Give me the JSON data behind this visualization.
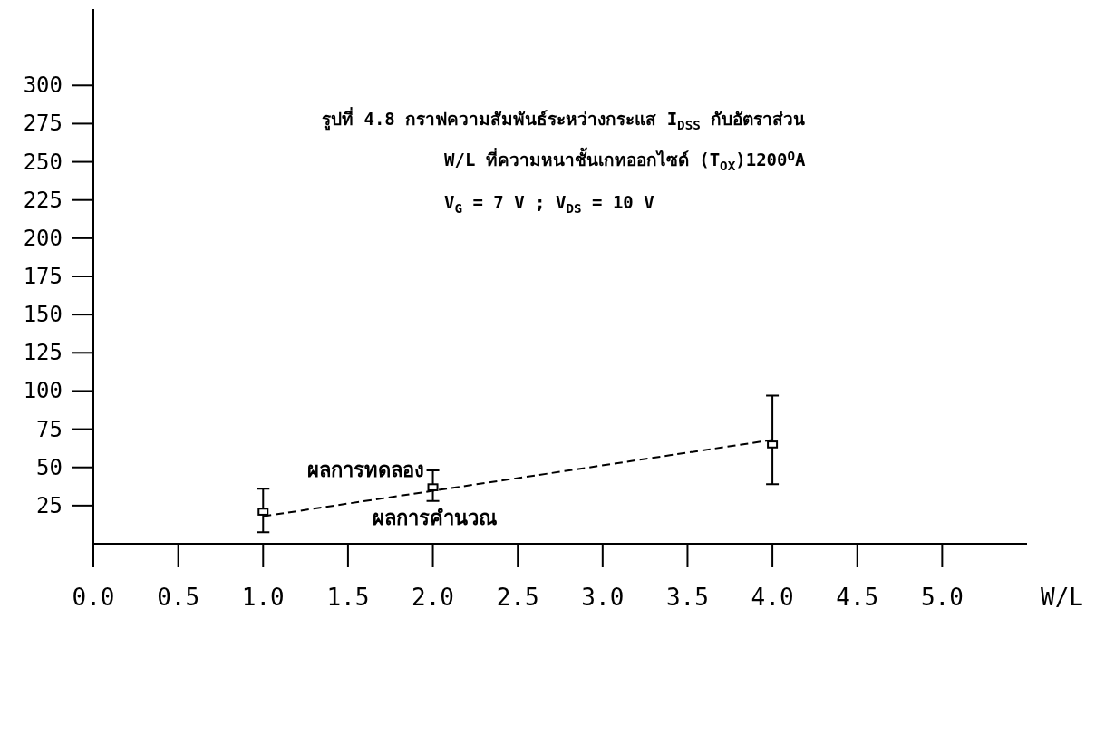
{
  "chart_data": {
    "type": "scatter",
    "title": "รูปที่ 4.8  กราฟความสัมพันธ์ระหว่างกระแส I$_{DSS}$ กับอัตราส่วน",
    "subtitle": "W/L  ที่ความหนาชั้นเกทออกไซด์ (T$_{OX}$)1200$^{O}$A\nV$_{G}$ = 7 V  ; V$_{DS}$ = 10 V",
    "xlabel": "W/L",
    "xlim": [
      0,
      5.5
    ],
    "xticks": [
      {
        "value": 0,
        "label": "0.0"
      },
      {
        "value": 0.5,
        "label": "0.5"
      },
      {
        "value": 1,
        "label": "1.0"
      },
      {
        "value": 1.5,
        "label": "1.5"
      },
      {
        "value": 2,
        "label": "2.0"
      },
      {
        "value": 2.5,
        "label": "2.5"
      },
      {
        "value": 3,
        "label": "3.0"
      },
      {
        "value": 3.5,
        "label": "3.5"
      },
      {
        "value": 4,
        "label": "4.0"
      },
      {
        "value": 4.5,
        "label": "4.5"
      },
      {
        "value": 5,
        "label": "5.0"
      }
    ],
    "ylim": [
      0,
      350
    ],
    "yticks": [
      25,
      50,
      75,
      100,
      125,
      150,
      175,
      200,
      225,
      250,
      275,
      300
    ],
    "grid": false,
    "legend": false,
    "series": [
      {
        "name": "ผลการทดลอง",
        "color": "#000000",
        "marker": "square",
        "x": [
          1,
          2,
          4
        ],
        "values": [
          21,
          37,
          65
        ],
        "errors": [
          [
            7.5,
            36
          ],
          [
            28,
            48
          ],
          [
            39,
            97
          ]
        ]
      },
      {
        "name": "ผลการคำนวณ",
        "type": "line",
        "color": "#000000",
        "line_style": "dashed",
        "marker": "none",
        "x": [
          1,
          4
        ],
        "values": [
          18,
          68
        ]
      }
    ]
  }
}
